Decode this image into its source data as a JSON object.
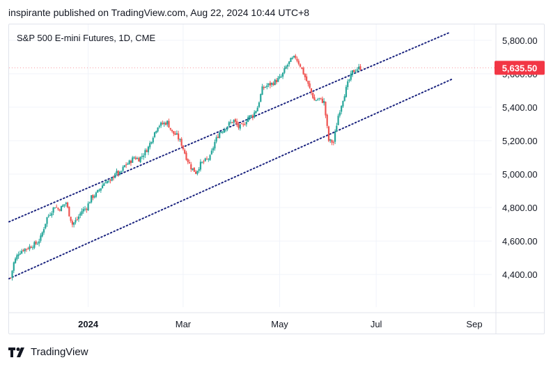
{
  "header": {
    "text": "inspirante published on TradingView.com, Aug 22, 2024 10:44 UTC+8"
  },
  "footer": {
    "brand": "TradingView"
  },
  "colors": {
    "up": "#26a69a",
    "down": "#ef5350",
    "channel": "#1a237e",
    "grid": "#f0f3fa",
    "text": "#131722",
    "price_badge": "#f23645"
  },
  "chart_data": {
    "type": "candlestick",
    "title": "S&P 500 E-mini Futures, 1D, CME",
    "symbol": "S&P 500 E-mini Futures",
    "interval": "1D",
    "exchange": "CME",
    "last_price": 5635.5,
    "last_price_label": "5,635.50",
    "y_ticks": [
      4400,
      4600,
      4800,
      5000,
      5200,
      5400,
      5600,
      5800
    ],
    "y_tick_labels": [
      "4,400.00",
      "4,600.00",
      "4,800.00",
      "5,000.00",
      "5,200.00",
      "5,400.00",
      "5,600.00",
      "5,800.00"
    ],
    "x_ticks": [
      {
        "label": "2024",
        "day": 20,
        "bold": true
      },
      {
        "label": "Mar",
        "day": 80,
        "bold": false
      },
      {
        "label": "May",
        "day": 141,
        "bold": false
      },
      {
        "label": "Jul",
        "day": 202,
        "bold": false
      },
      {
        "label": "Sep",
        "day": 264,
        "bold": false
      }
    ],
    "x_range_days": [
      -30,
      275
    ],
    "y_range": [
      4205,
      5895
    ],
    "closes": [
      [
        -29,
        4380
      ],
      [
        -27,
        4470
      ],
      [
        -24,
        4530
      ],
      [
        -21,
        4550
      ],
      [
        -18,
        4560
      ],
      [
        -15,
        4575
      ],
      [
        -12,
        4590
      ],
      [
        -10,
        4620
      ],
      [
        -8,
        4680
      ],
      [
        -6,
        4740
      ],
      [
        -3,
        4780
      ],
      [
        -1,
        4810
      ],
      [
        1,
        4790
      ],
      [
        3,
        4800
      ],
      [
        6,
        4830
      ],
      [
        8,
        4760
      ],
      [
        10,
        4700
      ],
      [
        13,
        4730
      ],
      [
        16,
        4780
      ],
      [
        19,
        4800
      ],
      [
        22,
        4860
      ],
      [
        25,
        4880
      ],
      [
        28,
        4920
      ],
      [
        31,
        4960
      ],
      [
        34,
        4950
      ],
      [
        37,
        5010
      ],
      [
        40,
        5000
      ],
      [
        43,
        5050
      ],
      [
        46,
        5070
      ],
      [
        49,
        5100
      ],
      [
        52,
        5090
      ],
      [
        55,
        5120
      ],
      [
        58,
        5160
      ],
      [
        61,
        5230
      ],
      [
        64,
        5290
      ],
      [
        67,
        5300
      ],
      [
        70,
        5310
      ],
      [
        73,
        5250
      ],
      [
        76,
        5230
      ],
      [
        79,
        5180
      ],
      [
        82,
        5100
      ],
      [
        85,
        5040
      ],
      [
        88,
        5010
      ],
      [
        91,
        5060
      ],
      [
        94,
        5080
      ],
      [
        97,
        5100
      ],
      [
        100,
        5190
      ],
      [
        103,
        5250
      ],
      [
        106,
        5270
      ],
      [
        109,
        5300
      ],
      [
        112,
        5320
      ],
      [
        115,
        5280
      ],
      [
        118,
        5290
      ],
      [
        121,
        5340
      ],
      [
        124,
        5350
      ],
      [
        127,
        5400
      ],
      [
        130,
        5510
      ],
      [
        133,
        5530
      ],
      [
        136,
        5540
      ],
      [
        139,
        5560
      ],
      [
        142,
        5580
      ],
      [
        145,
        5640
      ],
      [
        148,
        5680
      ],
      [
        151,
        5700
      ],
      [
        154,
        5650
      ],
      [
        157,
        5580
      ],
      [
        160,
        5510
      ],
      [
        163,
        5440
      ],
      [
        166,
        5450
      ],
      [
        169,
        5430
      ],
      [
        172,
        5200
      ],
      [
        175,
        5190
      ],
      [
        178,
        5350
      ],
      [
        181,
        5450
      ],
      [
        184,
        5540
      ],
      [
        187,
        5610
      ],
      [
        190,
        5630
      ],
      [
        192,
        5635.5
      ]
    ],
    "channel": {
      "upper": [
        [
          -30,
          4715
        ],
        [
          248,
          5845
        ]
      ],
      "lower": [
        [
          -30,
          4375
        ],
        [
          250,
          5568
        ]
      ]
    }
  }
}
